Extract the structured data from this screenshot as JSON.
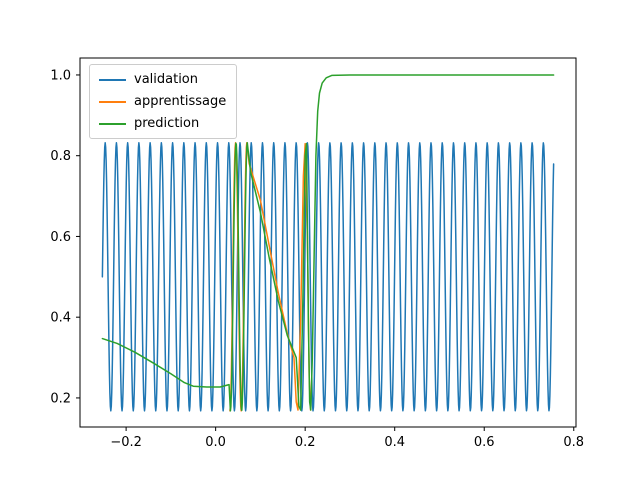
{
  "figure": {
    "background": "#ffffff",
    "axes_edge_color": "#000000"
  },
  "chart_data": {
    "type": "line",
    "title": "",
    "xlabel": "",
    "ylabel": "",
    "grid": false,
    "xlim": [
      -0.303,
      0.805
    ],
    "ylim": [
      0.128,
      1.042
    ],
    "xticks": [
      {
        "value": -0.2,
        "label": "−0.2"
      },
      {
        "value": 0.0,
        "label": "0.0"
      },
      {
        "value": 0.2,
        "label": "0.2"
      },
      {
        "value": 0.4,
        "label": "0.4"
      },
      {
        "value": 0.6,
        "label": "0.6"
      },
      {
        "value": 0.8,
        "label": "0.8"
      }
    ],
    "yticks": [
      {
        "value": 0.2,
        "label": "0.2"
      },
      {
        "value": 0.4,
        "label": "0.4"
      },
      {
        "value": 0.6,
        "label": "0.6"
      },
      {
        "value": 0.8,
        "label": "0.8"
      },
      {
        "value": 1.0,
        "label": "1.0"
      }
    ],
    "legend": {
      "position": "upper left",
      "entries": [
        {
          "label": "validation",
          "color": "#1f77b4"
        },
        {
          "label": "apprentissage",
          "color": "#ff7f0e"
        },
        {
          "label": "prediction",
          "color": "#2ca02c"
        }
      ]
    },
    "series": [
      {
        "name": "validation",
        "color": "#1f77b4",
        "segments": [
          {
            "kind": "sine",
            "x_start": -0.253,
            "x_end": 0.755,
            "mean": 0.5,
            "amplitude": 0.332,
            "period": 0.0251,
            "x0": -0.253
          }
        ]
      },
      {
        "name": "apprentissage",
        "color": "#ff7f0e",
        "segments": [
          {
            "kind": "sine",
            "x_start": 0.032,
            "x_end": 0.0696,
            "mean": 0.5,
            "amplitude": 0.332,
            "period": 0.0251,
            "x0": 0.038275
          },
          {
            "kind": "points",
            "points": [
              [
                0.075,
                0.78
              ],
              [
                0.1,
                0.69
              ],
              [
                0.12,
                0.575
              ],
              [
                0.14,
                0.46
              ],
              [
                0.16,
                0.36
              ],
              [
                0.175,
                0.3
              ],
              [
                0.18,
                0.19
              ],
              [
                0.184,
                0.17
              ],
              [
                0.19,
                0.4
              ],
              [
                0.196,
                0.75
              ],
              [
                0.2,
                0.83
              ],
              [
                0.205,
                0.6
              ],
              [
                0.209,
                0.25
              ],
              [
                0.212,
                0.17
              ]
            ]
          }
        ]
      },
      {
        "name": "prediction",
        "color": "#2ca02c",
        "segments": [
          {
            "kind": "points",
            "points": [
              [
                -0.253,
                0.347
              ],
              [
                -0.22,
                0.335
              ],
              [
                -0.18,
                0.313
              ],
              [
                -0.14,
                0.287
              ],
              [
                -0.1,
                0.26
              ],
              [
                -0.07,
                0.238
              ],
              [
                -0.05,
                0.229
              ],
              [
                -0.02,
                0.227
              ],
              [
                0.01,
                0.227
              ],
              [
                0.03,
                0.233
              ]
            ]
          },
          {
            "kind": "sine",
            "x_start": 0.033,
            "x_end": 0.0707,
            "mean": 0.5,
            "amplitude": 0.332,
            "period": 0.0251,
            "x0": 0.0393
          },
          {
            "kind": "points",
            "points": [
              [
                0.078,
                0.76
              ],
              [
                0.1,
                0.66
              ],
              [
                0.12,
                0.545
              ],
              [
                0.14,
                0.44
              ],
              [
                0.16,
                0.355
              ],
              [
                0.18,
                0.3
              ],
              [
                0.186,
                0.18
              ],
              [
                0.19,
                0.17
              ],
              [
                0.195,
                0.45
              ],
              [
                0.2,
                0.8
              ],
              [
                0.203,
                0.83
              ],
              [
                0.207,
                0.4
              ],
              [
                0.21,
                0.19
              ],
              [
                0.2125,
                0.17
              ],
              [
                0.216,
                0.3
              ],
              [
                0.22,
                0.55
              ],
              [
                0.224,
                0.8
              ],
              [
                0.228,
                0.91
              ],
              [
                0.232,
                0.955
              ],
              [
                0.238,
                0.98
              ],
              [
                0.247,
                0.993
              ],
              [
                0.26,
                0.999
              ],
              [
                0.3,
                1.0
              ],
              [
                0.5,
                1.0
              ],
              [
                0.755,
                1.0
              ]
            ]
          }
        ]
      }
    ]
  }
}
